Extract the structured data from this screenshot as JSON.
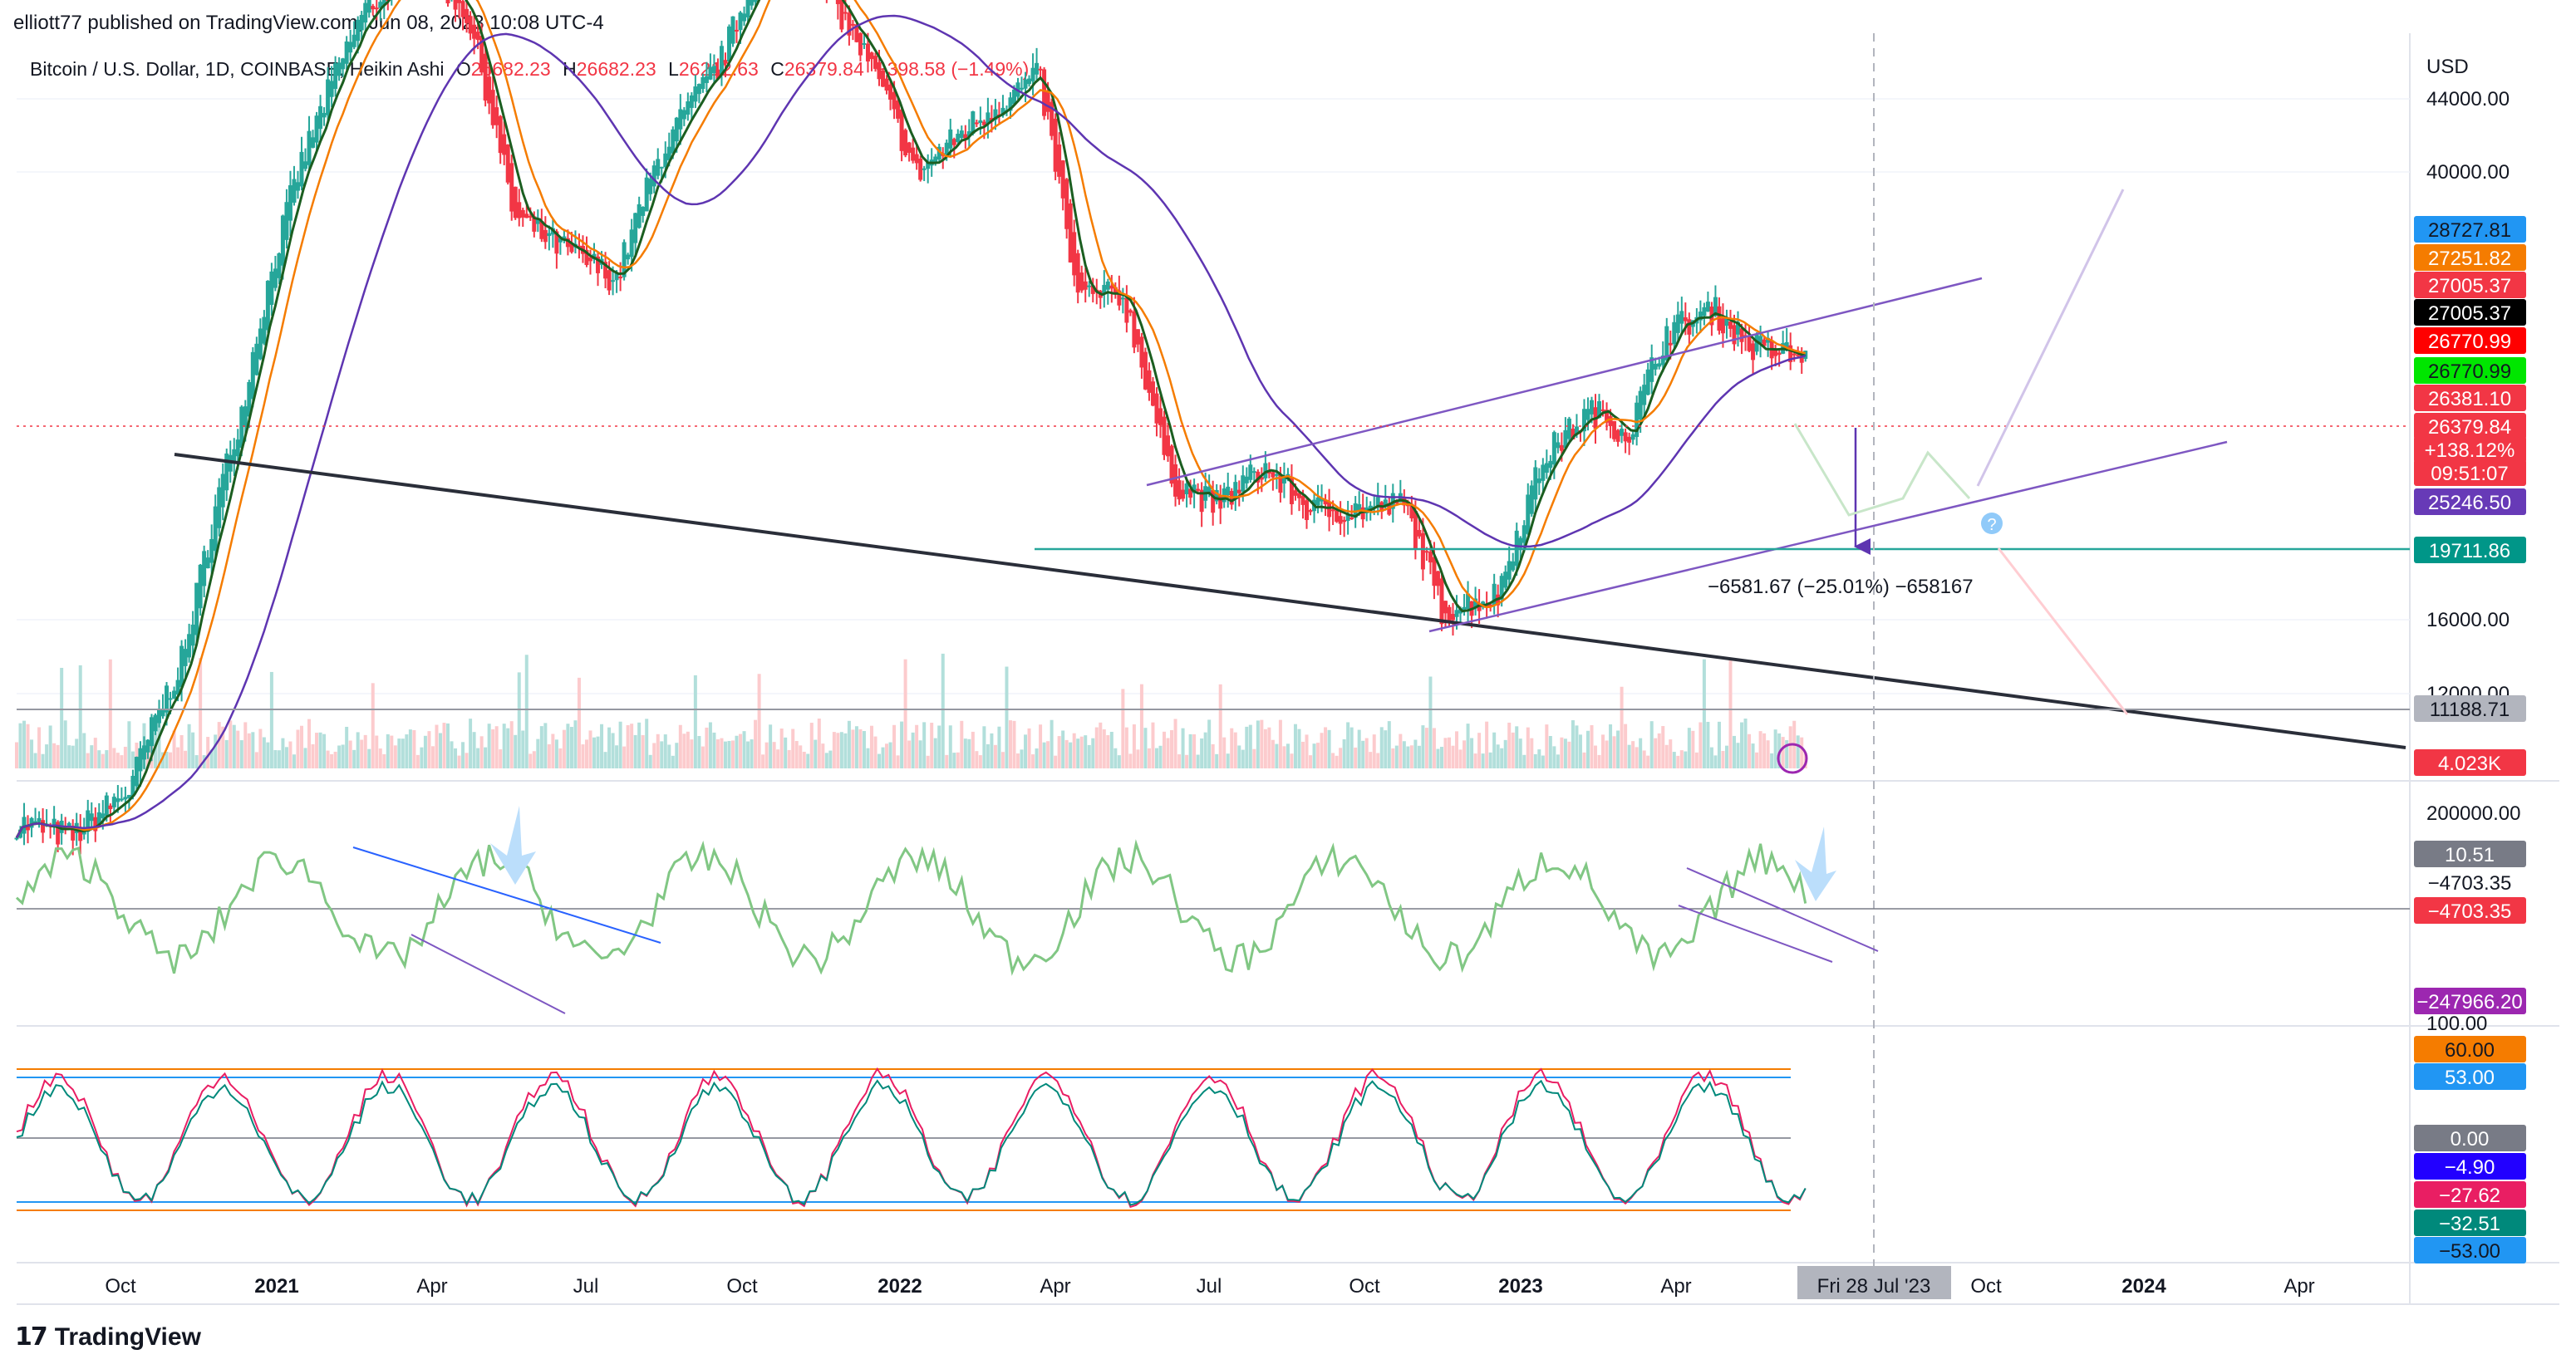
{
  "header": {
    "published": "elliott77 published on TradingView.com, Jun 08, 2023 10:08 UTC-4"
  },
  "legend": {
    "symbol": "Bitcoin / U.S. Dollar, 1D, COINBASE, Heikin Ashi",
    "o_label": "O",
    "o_value": "26682.23",
    "h_label": "H",
    "h_value": "26682.23",
    "l_label": "L",
    "l_value": "26212.63",
    "c_label": "C",
    "c_value": "26379.84",
    "change": "−398.58 (−1.49%)"
  },
  "price_axis": {
    "currency": "USD",
    "ticks": [
      "44000.00",
      "40000.00",
      "16000.00",
      "12000.00"
    ]
  },
  "price_labels": [
    {
      "text": "28727.81",
      "bg": "#2196f3",
      "fg": "#131722"
    },
    {
      "text": "27251.82",
      "bg": "#f57c00",
      "fg": "#ffffff"
    },
    {
      "text": "27005.37",
      "bg": "#f23645",
      "fg": "#ffffff"
    },
    {
      "text": "27005.37",
      "bg": "#000000",
      "fg": "#ffffff"
    },
    {
      "text": "26770.99",
      "bg": "#ff0000",
      "fg": "#ffffff"
    },
    {
      "text": "26770.99",
      "bg": "#00e600",
      "fg": "#131722"
    },
    {
      "text": "26381.10",
      "bg": "#f23645",
      "fg": "#ffffff"
    },
    {
      "text": "26379.84",
      "bg": "#f23645",
      "fg": "#ffffff"
    },
    {
      "text": "+138.12%",
      "bg": "#f23645",
      "fg": "#ffffff"
    },
    {
      "text": "09:51:07",
      "bg": "#f23645",
      "fg": "#ffffff"
    },
    {
      "text": "25246.50",
      "bg": "#673ab7",
      "fg": "#ffffff"
    },
    {
      "text": "19711.86",
      "bg": "#009688",
      "fg": "#ffffff"
    },
    {
      "text": "11188.71",
      "bg": "#b2b5be",
      "fg": "#131722"
    },
    {
      "text": "4.023K",
      "bg": "#f23645",
      "fg": "#ffffff"
    }
  ],
  "measure_label": "−6581.67 (−25.01%) −658167",
  "osc1": {
    "tick": "200000.00",
    "labels": [
      {
        "text": "10.51",
        "bg": "#787b86",
        "fg": "#ffffff"
      },
      {
        "text": "−4703.35",
        "bg": "#ffffff",
        "fg": "#131722"
      },
      {
        "text": "−4703.35",
        "bg": "#f23645",
        "fg": "#ffffff"
      },
      {
        "text": "−247966.20",
        "bg": "#9c27b0",
        "fg": "#ffffff"
      }
    ]
  },
  "osc2": {
    "tick": "100.00",
    "labels": [
      {
        "text": "60.00",
        "bg": "#f57c00",
        "fg": "#131722"
      },
      {
        "text": "53.00",
        "bg": "#2196f3",
        "fg": "#ffffff"
      },
      {
        "text": "0.00",
        "bg": "#787b86",
        "fg": "#ffffff"
      },
      {
        "text": "−4.90",
        "bg": "#2200ff",
        "fg": "#ffffff"
      },
      {
        "text": "−27.62",
        "bg": "#e91e63",
        "fg": "#ffffff"
      },
      {
        "text": "−32.51",
        "bg": "#00897b",
        "fg": "#ffffff"
      },
      {
        "text": "−53.00",
        "bg": "#2196f3",
        "fg": "#131722"
      }
    ]
  },
  "time_axis": {
    "ticks": [
      {
        "label": "Oct",
        "bold": false
      },
      {
        "label": "2021",
        "bold": true
      },
      {
        "label": "Apr",
        "bold": false
      },
      {
        "label": "Jul",
        "bold": false
      },
      {
        "label": "Oct",
        "bold": false
      },
      {
        "label": "2022",
        "bold": true
      },
      {
        "label": "Apr",
        "bold": false
      },
      {
        "label": "Jul",
        "bold": false
      },
      {
        "label": "Oct",
        "bold": false
      },
      {
        "label": "2023",
        "bold": true
      },
      {
        "label": "Apr",
        "bold": false
      },
      {
        "label": "Oct",
        "bold": false
      },
      {
        "label": "2024",
        "bold": true
      },
      {
        "label": "Apr",
        "bold": false
      }
    ],
    "crosshair_date": "Fri 28 Jul '23"
  },
  "footer": {
    "logo_icon": "tradingview-logo-icon",
    "brand": "TradingView"
  },
  "colors": {
    "up": "#26a69a",
    "down": "#f23645",
    "ma_orange": "#f57c00",
    "ma_green": "#1b5e20",
    "ma_purple": "#5e35b1",
    "channel": "#7e57c2",
    "support": "#26a69a",
    "trendline": "#2a2e39"
  }
}
